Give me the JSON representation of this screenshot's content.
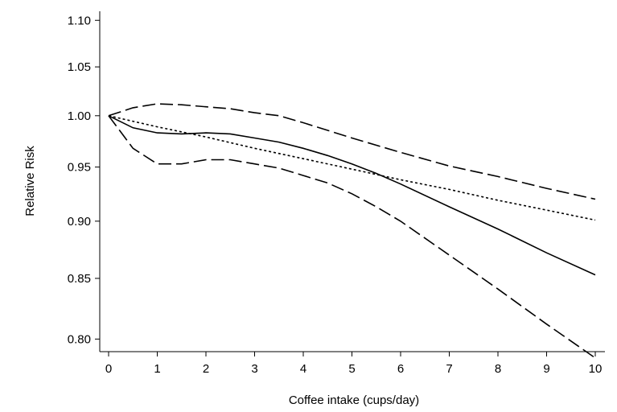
{
  "chart_data": {
    "type": "line",
    "title": "",
    "xlabel": "Coffee intake (cups/day)",
    "ylabel": "Relative Risk",
    "xlim": [
      0,
      10
    ],
    "ylim": [
      0.79,
      1.11
    ],
    "y_scale": "log",
    "grid": false,
    "x_ticks": [
      "0",
      "1",
      "2",
      "3",
      "4",
      "5",
      "6",
      "7",
      "8",
      "9",
      "10"
    ],
    "y_ticks": [
      "0.80",
      "0.85",
      "0.90",
      "0.95",
      "1.00",
      "1.05",
      "1.10"
    ],
    "series": [
      {
        "style": "solid",
        "points": [
          [
            0,
            1.0
          ],
          [
            0.5,
            0.988
          ],
          [
            1,
            0.983
          ],
          [
            1.5,
            0.982
          ],
          [
            2,
            0.983
          ],
          [
            2.5,
            0.982
          ],
          [
            3,
            0.978
          ],
          [
            3.5,
            0.974
          ],
          [
            4,
            0.968
          ],
          [
            4.5,
            0.961
          ],
          [
            5,
            0.953
          ],
          [
            5.5,
            0.944
          ],
          [
            6,
            0.934
          ],
          [
            7,
            0.913
          ],
          [
            8,
            0.893
          ],
          [
            9,
            0.872
          ],
          [
            10,
            0.853
          ]
        ]
      },
      {
        "style": "dotted",
        "points": [
          [
            0,
            1.0
          ],
          [
            1,
            0.989
          ],
          [
            2,
            0.979
          ],
          [
            3,
            0.968
          ],
          [
            4,
            0.958
          ],
          [
            5,
            0.948
          ],
          [
            6,
            0.938
          ],
          [
            7,
            0.929
          ],
          [
            8,
            0.919
          ],
          [
            9,
            0.91
          ],
          [
            10,
            0.901
          ]
        ]
      },
      {
        "style": "dashed",
        "points": [
          [
            0,
            1.0
          ],
          [
            0.5,
            1.008
          ],
          [
            1,
            1.012
          ],
          [
            1.5,
            1.011
          ],
          [
            2,
            1.009
          ],
          [
            2.5,
            1.007
          ],
          [
            3,
            1.003
          ],
          [
            3.5,
            1.0
          ],
          [
            4,
            0.993
          ],
          [
            5,
            0.978
          ],
          [
            6,
            0.964
          ],
          [
            7,
            0.951
          ],
          [
            8,
            0.941
          ],
          [
            9,
            0.93
          ],
          [
            10,
            0.92
          ]
        ]
      },
      {
        "style": "dashed",
        "points": [
          [
            0,
            1.0
          ],
          [
            0.5,
            0.968
          ],
          [
            1,
            0.953
          ],
          [
            1.5,
            0.953
          ],
          [
            2,
            0.957
          ],
          [
            2.5,
            0.957
          ],
          [
            3,
            0.953
          ],
          [
            3.5,
            0.949
          ],
          [
            4,
            0.942
          ],
          [
            4.5,
            0.935
          ],
          [
            5,
            0.925
          ],
          [
            5.5,
            0.913
          ],
          [
            6,
            0.9
          ],
          [
            7,
            0.87
          ],
          [
            8,
            0.841
          ],
          [
            9,
            0.812
          ],
          [
            10,
            0.785
          ]
        ]
      }
    ]
  }
}
